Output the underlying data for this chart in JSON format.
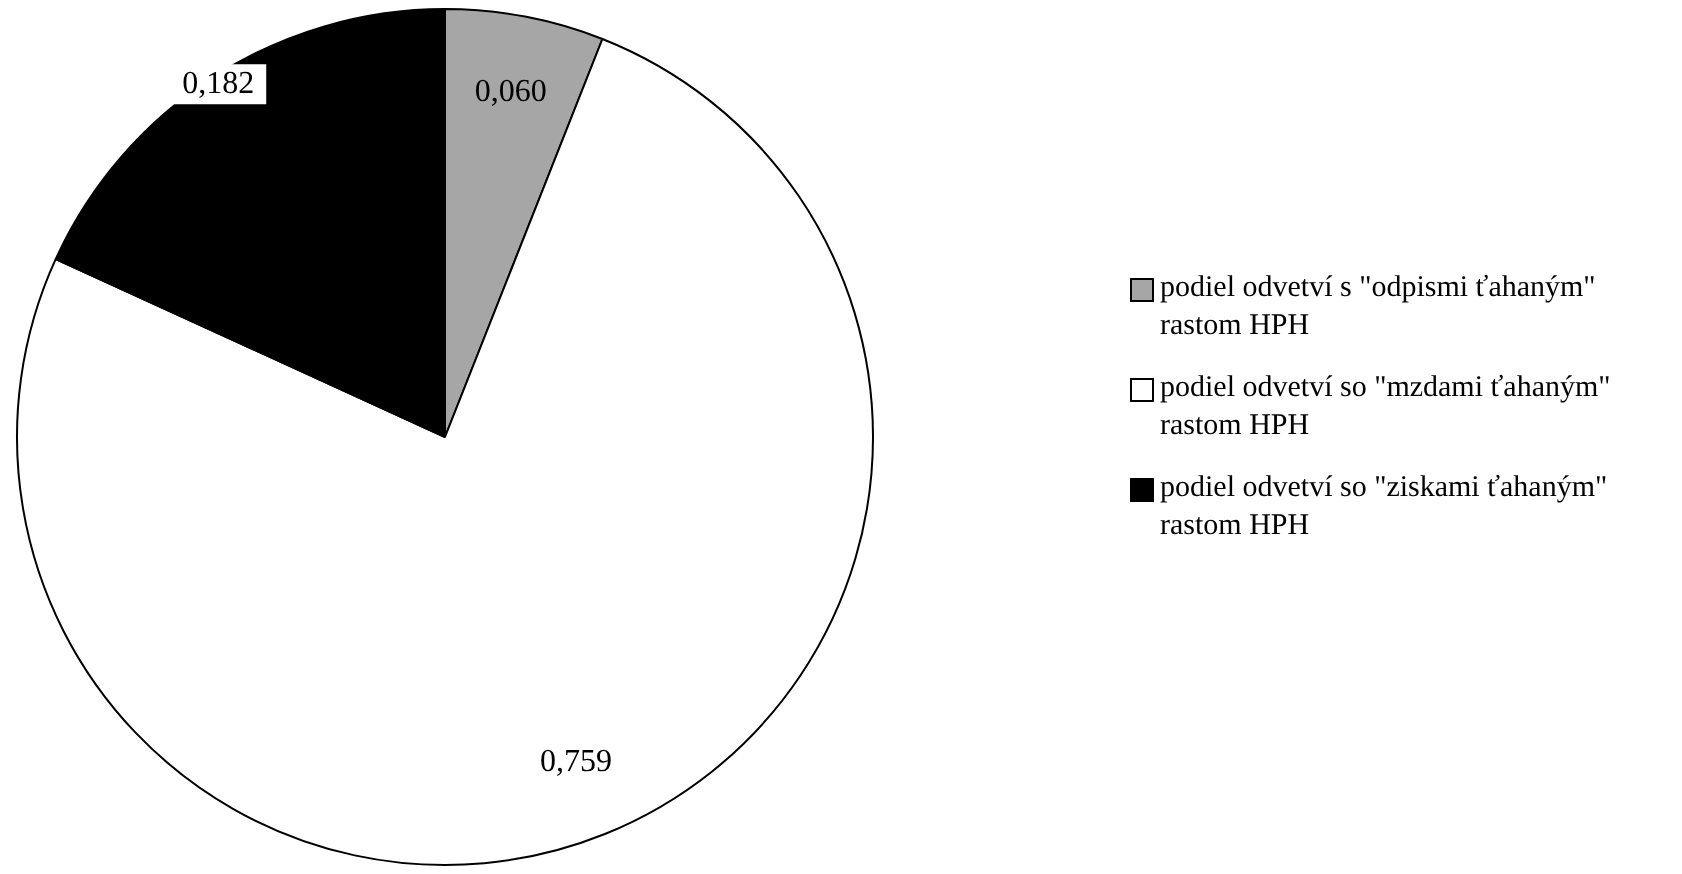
{
  "chart_data": {
    "type": "pie",
    "categories": [
      "podiel odvetví s \"odpismi ťahaným\" rastom HPH",
      "podiel odvetví so \"mzdami ťahaným\" rastom HPH",
      "podiel odvetví so \"ziskami ťahaným\" rastom HPH"
    ],
    "values": [
      0.06,
      0.759,
      0.182
    ],
    "value_labels": [
      "0,060",
      "0,759",
      "0,182"
    ],
    "colors": [
      "#a6a6a6",
      "#ffffff",
      "#000000"
    ],
    "legend": "right"
  }
}
